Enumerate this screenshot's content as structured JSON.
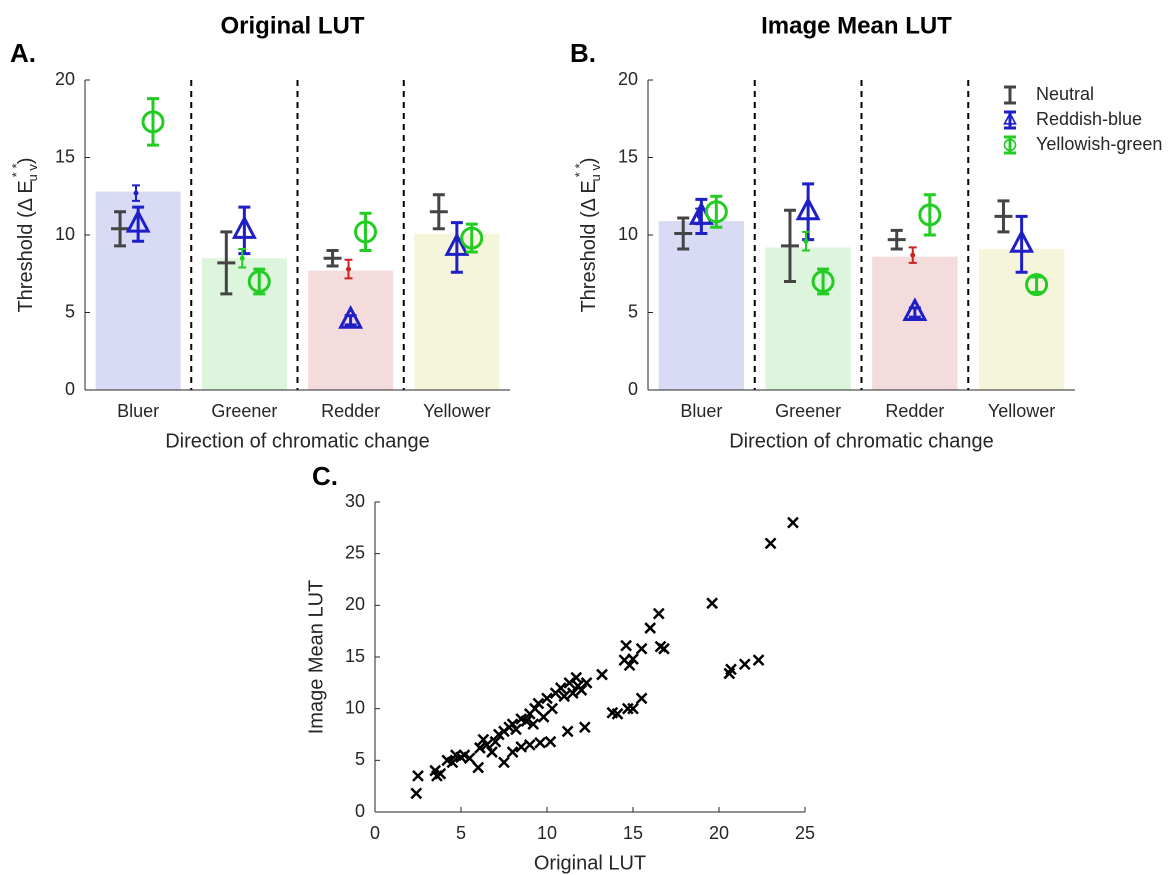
{
  "chart_data": [
    {
      "type": "bar",
      "panel_label": "A.",
      "title": "Original LUT",
      "x_label": "Direction of chromatic change",
      "y_label": "Threshold (Δ E",
      "y_label_sup": "* *",
      "y_label_sub": "u v",
      "y_label_end": ")",
      "categories": [
        "Bluer",
        "Greener",
        "Redder",
        "Yellower"
      ],
      "values": [
        12.8,
        8.5,
        7.7,
        10.1
      ],
      "bar_colors": [
        "#d9dbf5",
        "#dcf5dc",
        "#f5dcdc",
        "#f5f5dc"
      ],
      "ylim": [
        0,
        20
      ],
      "yticks": [
        0,
        5,
        10,
        15,
        20
      ],
      "series": [
        {
          "color": "#444444",
          "marker": "plus",
          "values": [
            10.4,
            8.2,
            8.5,
            11.5
          ],
          "errors": [
            1.1,
            2.0,
            0.5,
            1.1
          ]
        },
        {
          "color": "#1f1fc8",
          "marker": "triangle",
          "values": [
            10.7,
            10.3,
            4.5,
            9.2
          ],
          "errors": [
            1.1,
            1.5,
            0.3,
            1.6
          ]
        },
        {
          "color": "#22cc22",
          "marker": "circle",
          "values": [
            17.3,
            7.0,
            10.2,
            9.8
          ],
          "errors": [
            1.5,
            0.8,
            1.2,
            0.9
          ]
        },
        {
          "colors": [
            "#1f1fc8",
            "#22cc22",
            "#cc2222",
            "#cccc22"
          ],
          "marker": "dot",
          "values": [
            12.7,
            8.5,
            7.8,
            null
          ],
          "errors": [
            0.5,
            0.6,
            0.6,
            null
          ]
        }
      ]
    },
    {
      "type": "bar",
      "panel_label": "B.",
      "title": "Image Mean LUT",
      "x_label": "Direction of chromatic change",
      "y_label": "Threshold (Δ E",
      "y_label_sup": "* *",
      "y_label_sub": "u v",
      "y_label_end": ")",
      "categories": [
        "Bluer",
        "Greener",
        "Redder",
        "Yellower"
      ],
      "values": [
        10.9,
        9.2,
        8.6,
        9.1
      ],
      "bar_colors": [
        "#d9dbf5",
        "#dcf5dc",
        "#f5dcdc",
        "#f5f5dc"
      ],
      "ylim": [
        0,
        20
      ],
      "yticks": [
        0,
        5,
        10,
        15,
        20
      ],
      "series": [
        {
          "name": "Neutral",
          "color": "#444444",
          "marker": "plus",
          "values": [
            10.1,
            9.3,
            9.7,
            11.2
          ],
          "errors": [
            1.0,
            2.3,
            0.6,
            1.0
          ]
        },
        {
          "name": "Reddish-blue",
          "color": "#1f1fc8",
          "marker": "triangle",
          "values": [
            11.2,
            11.5,
            5.0,
            9.4
          ],
          "errors": [
            1.1,
            1.8,
            0.3,
            1.8
          ]
        },
        {
          "name": "Yellowish-green",
          "color": "#22cc22",
          "marker": "circle",
          "values": [
            11.5,
            7.0,
            11.3,
            6.8
          ],
          "errors": [
            1.0,
            0.8,
            1.3,
            0.5
          ]
        },
        {
          "colors": [
            "#1f1fc8",
            "#22cc22",
            "#cc2222",
            "#cccc22"
          ],
          "marker": "dot",
          "values": [
            11.2,
            9.6,
            8.7,
            null
          ],
          "errors": [
            0.5,
            0.6,
            0.5,
            null
          ]
        }
      ]
    },
    {
      "type": "scatter",
      "panel_label": "C.",
      "x_label": "Original LUT",
      "y_label": "Image Mean LUT",
      "color": "#000000",
      "xlim": [
        0,
        25
      ],
      "xticks": [
        0,
        5,
        10,
        15,
        20,
        25
      ],
      "ylim": [
        0,
        30
      ],
      "yticks": [
        0,
        5,
        10,
        15,
        20,
        25,
        30
      ],
      "x": [
        2.4,
        2.5,
        3.5,
        3.6,
        3.8,
        4.2,
        4.5,
        4.7,
        5.0,
        5.2,
        5.5,
        6.0,
        6.1,
        6.3,
        6.5,
        6.8,
        7.0,
        7.2,
        7.5,
        7.5,
        7.8,
        8.0,
        8.0,
        8.2,
        8.5,
        8.5,
        8.8,
        9.0,
        9.0,
        9.2,
        9.3,
        9.5,
        9.6,
        9.8,
        10.0,
        10.2,
        10.3,
        10.5,
        10.8,
        11.0,
        11.2,
        11.3,
        11.5,
        11.7,
        11.8,
        12.0,
        12.2,
        12.3,
        13.2,
        13.8,
        14.1,
        14.5,
        14.6,
        14.7,
        14.8,
        15.0,
        15.0,
        15.5,
        15.5,
        16.0,
        16.5,
        16.6,
        16.8,
        19.6,
        20.6,
        20.7,
        21.5,
        22.3,
        23.0,
        24.3
      ],
      "y": [
        1.8,
        3.5,
        4.0,
        3.5,
        3.7,
        5.0,
        4.8,
        5.5,
        5.3,
        5.5,
        5.2,
        4.3,
        6.2,
        7.0,
        6.5,
        5.8,
        6.8,
        7.5,
        4.8,
        7.8,
        8.2,
        5.8,
        8.5,
        8.0,
        6.3,
        9.0,
        8.8,
        6.5,
        9.5,
        8.5,
        10.0,
        10.5,
        6.7,
        9.2,
        11.0,
        6.8,
        10.0,
        11.5,
        12.0,
        11.2,
        7.8,
        12.5,
        11.5,
        13.0,
        12.2,
        11.8,
        8.2,
        12.5,
        13.3,
        9.6,
        9.5,
        14.7,
        16.1,
        10.0,
        14.2,
        10.0,
        14.8,
        11.0,
        15.8,
        17.8,
        19.2,
        16.0,
        15.8,
        20.2,
        13.4,
        13.8,
        14.3,
        14.7,
        26.0,
        28.0
      ]
    }
  ]
}
